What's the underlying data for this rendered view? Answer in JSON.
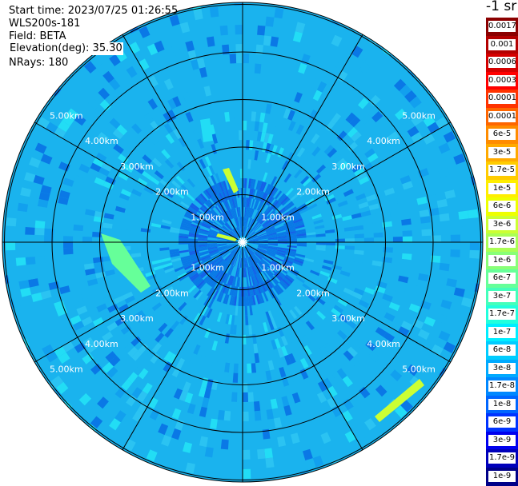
{
  "header": {
    "start_time": "Start time: 2023/07/25 01:26:55",
    "instrument": "WLS200s-181",
    "field": "Field: BETA",
    "elevation": "Elevation(deg): 35.30",
    "nrays": "NRays: 180"
  },
  "colorbar": {
    "title": "-1 sr",
    "levels": [
      {
        "label": "0.0017",
        "color": "#8b0000"
      },
      {
        "label": "0.001",
        "color": "#b30000"
      },
      {
        "label": "0.0006",
        "color": "#d40000"
      },
      {
        "label": "0.0003",
        "color": "#ff0000"
      },
      {
        "label": "0.00017",
        "color": "#ff3300"
      },
      {
        "label": "0.0001",
        "color": "#ff6600"
      },
      {
        "label": "6e-5",
        "color": "#ff8c00"
      },
      {
        "label": "3e-5",
        "color": "#ffaa00"
      },
      {
        "label": "1.7e-5",
        "color": "#ffcc00"
      },
      {
        "label": "1e-5",
        "color": "#ffee00"
      },
      {
        "label": "6e-6",
        "color": "#eeff00"
      },
      {
        "label": "3e-6",
        "color": "#ccff33"
      },
      {
        "label": "1.7e-6",
        "color": "#aaff55"
      },
      {
        "label": "1e-6",
        "color": "#88ff77"
      },
      {
        "label": "6e-7",
        "color": "#66ff99"
      },
      {
        "label": "3e-7",
        "color": "#44ffbb"
      },
      {
        "label": "1.7e-7",
        "color": "#22ffdd"
      },
      {
        "label": "1e-7",
        "color": "#00eeff"
      },
      {
        "label": "6e-8",
        "color": "#00ccff"
      },
      {
        "label": "3e-8",
        "color": "#00aaff"
      },
      {
        "label": "1.7e-8",
        "color": "#0088ff"
      },
      {
        "label": "1e-8",
        "color": "#0066ff"
      },
      {
        "label": "6e-9",
        "color": "#0033ff"
      },
      {
        "label": "3e-9",
        "color": "#0000ee"
      },
      {
        "label": "1.7e-9",
        "color": "#0000bb"
      },
      {
        "label": "1e-9",
        "color": "#000088"
      }
    ]
  },
  "ring_labels": [
    "1.00km",
    "2.00km",
    "3.00km",
    "4.00km",
    "5.00km"
  ],
  "colors": {
    "field_base": "#1ab3ee",
    "field_dark": "#0a78e6",
    "field_light": "#22ddf5",
    "grid": "#000000",
    "highlight_strong": "#ccff33",
    "highlight_mid": "#66ff99"
  }
}
